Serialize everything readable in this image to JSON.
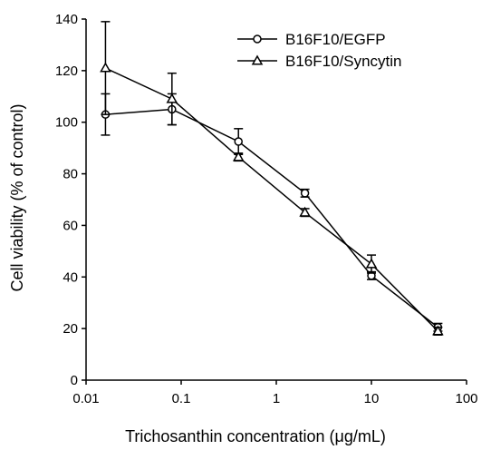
{
  "chart_data": {
    "type": "line",
    "title": "",
    "xlabel": "Trichosanthin concentration (μg/mL)",
    "ylabel": "Cell viability (% of control)",
    "x_scale": "log",
    "xlim": [
      0.01,
      100
    ],
    "ylim": [
      0,
      140
    ],
    "x_ticks": [
      0.01,
      0.1,
      1,
      10,
      100
    ],
    "x_tick_labels": [
      "0.01",
      "0.1",
      "1",
      "10",
      "100"
    ],
    "y_ticks": [
      0,
      20,
      40,
      60,
      80,
      100,
      120,
      140
    ],
    "y_tick_labels": [
      "0",
      "20",
      "40",
      "60",
      "80",
      "100",
      "120",
      "140"
    ],
    "grid": false,
    "legend_position": "top-right",
    "series": [
      {
        "name": "B16F10/EGFP",
        "marker": "circle",
        "color": "#000000",
        "x": [
          0.016,
          0.08,
          0.4,
          2,
          10,
          50
        ],
        "y": [
          103,
          105,
          92.5,
          72.5,
          40.5,
          20.5
        ],
        "err": [
          8,
          6,
          5,
          1.5,
          1.5,
          1.5
        ]
      },
      {
        "name": "B16F10/Syncytin",
        "marker": "triangle",
        "color": "#000000",
        "x": [
          0.016,
          0.08,
          0.4,
          2,
          10,
          50
        ],
        "y": [
          121,
          109,
          86.5,
          65,
          45,
          19
        ],
        "err": [
          18,
          10,
          1.5,
          1.5,
          3.5,
          1.5
        ]
      }
    ]
  }
}
